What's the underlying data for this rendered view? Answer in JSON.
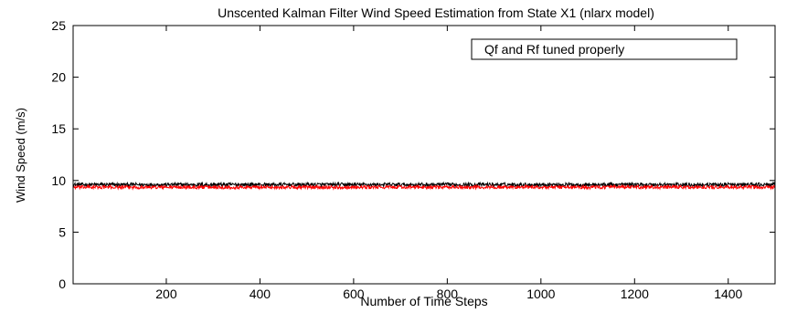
{
  "chart_data": {
    "type": "line",
    "title": "Unscented Kalman Filter Wind Speed Estimation from State X1 (nlarx model)",
    "xlabel": "Number of Time Steps",
    "ylabel": "Wind Speed (m/s)",
    "xlim": [
      1,
      1500
    ],
    "ylim": [
      0,
      25
    ],
    "xticks": [
      200,
      400,
      600,
      800,
      1000,
      1200,
      1400
    ],
    "yticks": [
      0,
      5,
      10,
      15,
      20,
      25
    ],
    "grid": false,
    "annotation": "Qf and Rf tuned properly",
    "series": [
      {
        "color": "#000000",
        "mean": 9.6,
        "noise_amplitude": 0.18,
        "n_points": 1500
      },
      {
        "color": "#ff0000",
        "mean": 9.35,
        "noise_amplitude": 0.16,
        "n_points": 1500
      }
    ]
  }
}
